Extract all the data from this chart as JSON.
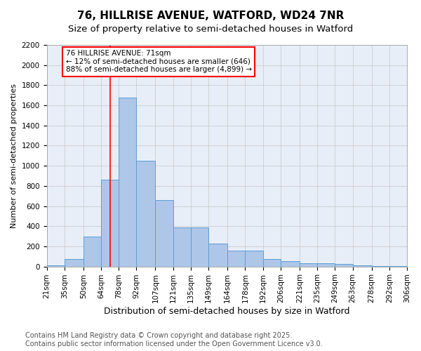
{
  "title1": "76, HILLRISE AVENUE, WATFORD, WD24 7NR",
  "title2": "Size of property relative to semi-detached houses in Watford",
  "xlabel": "Distribution of semi-detached houses by size in Watford",
  "ylabel": "Number of semi-detached properties",
  "bins": [
    21,
    35,
    50,
    64,
    78,
    92,
    107,
    121,
    135,
    149,
    164,
    178,
    192,
    206,
    221,
    235,
    249,
    263,
    278,
    292,
    306
  ],
  "bin_labels": [
    "21sqm",
    "35sqm",
    "50sqm",
    "64sqm",
    "78sqm",
    "92sqm",
    "107sqm",
    "121sqm",
    "135sqm",
    "149sqm",
    "164sqm",
    "178sqm",
    "192sqm",
    "206sqm",
    "221sqm",
    "235sqm",
    "249sqm",
    "263sqm",
    "278sqm",
    "292sqm",
    "306sqm"
  ],
  "values": [
    10,
    75,
    300,
    860,
    1680,
    1050,
    660,
    390,
    390,
    230,
    160,
    160,
    75,
    50,
    30,
    30,
    25,
    10,
    5,
    5
  ],
  "bar_color": "#aec6e8",
  "bar_edge_color": "#5a9fd4",
  "vline_x": 71,
  "vline_color": "red",
  "annotation_title": "76 HILLRISE AVENUE: 71sqm",
  "annotation_line1": "← 12% of semi-detached houses are smaller (646)",
  "annotation_line2": "88% of semi-detached houses are larger (4,899) →",
  "annotation_box_color": "white",
  "annotation_box_edge": "red",
  "ylim": [
    0,
    2200
  ],
  "yticks": [
    0,
    200,
    400,
    600,
    800,
    1000,
    1200,
    1400,
    1600,
    1800,
    2000,
    2200
  ],
  "grid_color": "#cccccc",
  "bg_color": "#e8eef8",
  "footer1": "Contains HM Land Registry data © Crown copyright and database right 2025.",
  "footer2": "Contains public sector information licensed under the Open Government Licence v3.0.",
  "title1_fontsize": 11,
  "title2_fontsize": 9.5,
  "xlabel_fontsize": 9,
  "ylabel_fontsize": 8,
  "tick_fontsize": 7.5,
  "footer_fontsize": 7
}
